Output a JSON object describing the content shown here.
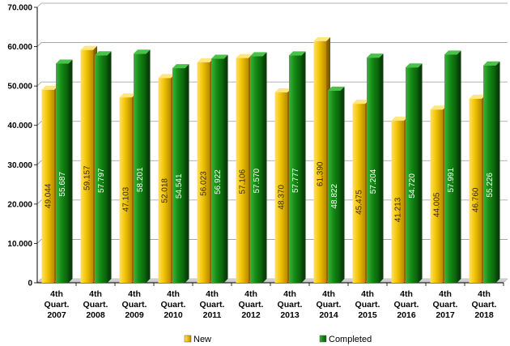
{
  "chart_data": {
    "type": "bar",
    "title": "",
    "xlabel": "",
    "ylabel": "",
    "ylim": [
      0,
      70000
    ],
    "yticks": [
      "0",
      "10.000",
      "20.000",
      "30.000",
      "40.000",
      "50.000",
      "60.000",
      "70.000"
    ],
    "grid": true,
    "legend_position": "bottom",
    "categories": [
      [
        "4th",
        "Quart.",
        "2007"
      ],
      [
        "4th",
        "Quart.",
        "2008"
      ],
      [
        "4th",
        "Quart.",
        "2009"
      ],
      [
        "4th",
        "Quart.",
        "2010"
      ],
      [
        "4th",
        "Quart.",
        "2011"
      ],
      [
        "4th",
        "Quart.",
        "2012"
      ],
      [
        "4th",
        "Quart.",
        "2013"
      ],
      [
        "4th",
        "Quart.",
        "2014"
      ],
      [
        "4th",
        "Quart.",
        "2015"
      ],
      [
        "4th",
        "Quart.",
        "2016"
      ],
      [
        "4th",
        "Quart.",
        "2017"
      ],
      [
        "4th",
        "Quart.",
        "2018"
      ]
    ],
    "series": [
      {
        "name": "New",
        "color": "#E8B000",
        "values": [
          49044,
          59157,
          47103,
          52018,
          56023,
          57106,
          48370,
          61390,
          45475,
          41213,
          44005,
          46760
        ],
        "labels": [
          "49.044",
          "59.157",
          "47.103",
          "52.018",
          "56.023",
          "57.106",
          "48.370",
          "61.390",
          "45.475",
          "41.213",
          "44.005",
          "46.760"
        ]
      },
      {
        "name": "Completed",
        "color": "#137D13",
        "values": [
          55687,
          57797,
          58201,
          54541,
          56922,
          57570,
          57777,
          48822,
          57204,
          54720,
          57991,
          55226
        ],
        "labels": [
          "55.687",
          "57.797",
          "58.201",
          "54.541",
          "56.922",
          "57.570",
          "57.777",
          "48.822",
          "57.204",
          "54.720",
          "57.991",
          "55.226"
        ]
      }
    ]
  }
}
